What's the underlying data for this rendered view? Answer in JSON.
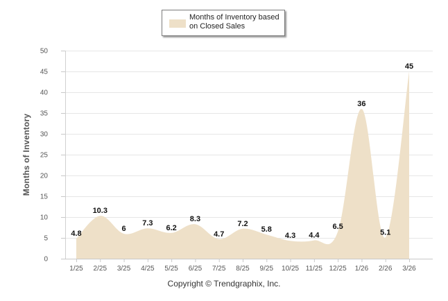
{
  "legend": {
    "label": "Months of Inventory based on Closed Sales",
    "swatch_color": "#eee0c8"
  },
  "footer": {
    "copyright": "Copyright © Trendgraphix, Inc."
  },
  "chart_data": {
    "type": "area",
    "title": "",
    "xlabel": "",
    "ylabel": "Months of Inventory",
    "ylim": [
      0,
      50
    ],
    "yticks": [
      0,
      5,
      10,
      15,
      20,
      25,
      30,
      35,
      40,
      45,
      50
    ],
    "grid": true,
    "categories": [
      "1/25",
      "2/25",
      "3/25",
      "4/25",
      "5/25",
      "6/25",
      "7/25",
      "8/25",
      "9/25",
      "10/25",
      "11/25",
      "12/25",
      "1/26",
      "2/26",
      "3/26"
    ],
    "series": [
      {
        "name": "Months of Inventory based on Closed Sales",
        "values": [
          4.8,
          10.3,
          6,
          7.3,
          6.2,
          8.3,
          4.7,
          7.2,
          5.8,
          4.3,
          4.4,
          6.5,
          36,
          5.1,
          45
        ],
        "labels": [
          "4.8",
          "10.3",
          "6",
          "7.3",
          "6.2",
          "8.3",
          "4.7",
          "7.2",
          "5.8",
          "4.3",
          "4.4",
          "6.5",
          "36",
          "5.1",
          "45"
        ],
        "color": "#eee0c8"
      }
    ]
  }
}
